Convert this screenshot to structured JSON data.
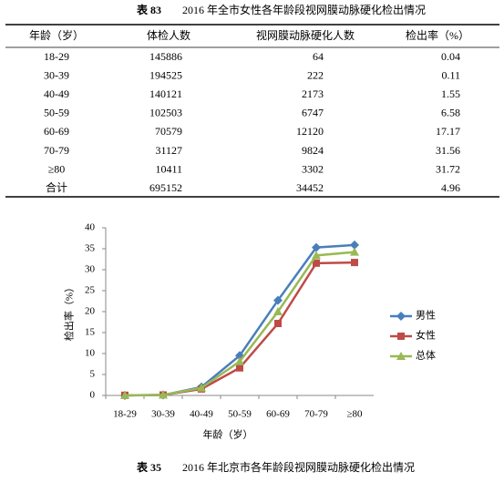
{
  "table_caption": {
    "number": "表 83",
    "text": "2016 年全市女性各年龄段视网膜动脉硬化检出情况"
  },
  "table": {
    "header": [
      "年龄（岁）",
      "体检人数",
      "视网膜动脉硬化人数",
      "检出率（%）"
    ],
    "rows": [
      [
        "18-29",
        "145886",
        "64",
        "0.04"
      ],
      [
        "30-39",
        "194525",
        "222",
        "0.11"
      ],
      [
        "40-49",
        "140121",
        "2173",
        "1.55"
      ],
      [
        "50-59",
        "102503",
        "6747",
        "6.58"
      ],
      [
        "60-69",
        "70579",
        "12120",
        "17.17"
      ],
      [
        "70-79",
        "31127",
        "9824",
        "31.56"
      ],
      [
        "≥80",
        "10411",
        "3302",
        "31.72"
      ],
      [
        "合计",
        "695152",
        "34452",
        "4.96"
      ]
    ]
  },
  "chart_data": {
    "type": "line",
    "x_label": "年龄（岁）",
    "y_label": "检出率（%）",
    "categories": [
      "18-29",
      "30-39",
      "40-49",
      "50-59",
      "60-69",
      "70-79",
      "≥80"
    ],
    "series": [
      {
        "name": "男性",
        "color": "#4a7ebb",
        "marker": "diamond",
        "values": [
          0,
          0.1,
          2.0,
          9.5,
          22.7,
          35.3,
          35.9
        ]
      },
      {
        "name": "女性",
        "color": "#be4b48",
        "marker": "square",
        "values": [
          0.04,
          0.11,
          1.55,
          6.58,
          17.17,
          31.56,
          31.72
        ]
      },
      {
        "name": "总体",
        "color": "#98b954",
        "marker": "triangle",
        "values": [
          0.02,
          0.1,
          1.8,
          8.1,
          20.0,
          33.4,
          34.2
        ]
      }
    ],
    "ylim": [
      0,
      40
    ],
    "yticks": [
      0,
      5,
      10,
      15,
      20,
      25,
      30,
      35,
      40
    ],
    "grid": false,
    "legend": "right"
  },
  "chart_caption": {
    "number": "表 35",
    "text": "2016 年北京市各年龄段视网膜动脉硬化检出情况"
  }
}
